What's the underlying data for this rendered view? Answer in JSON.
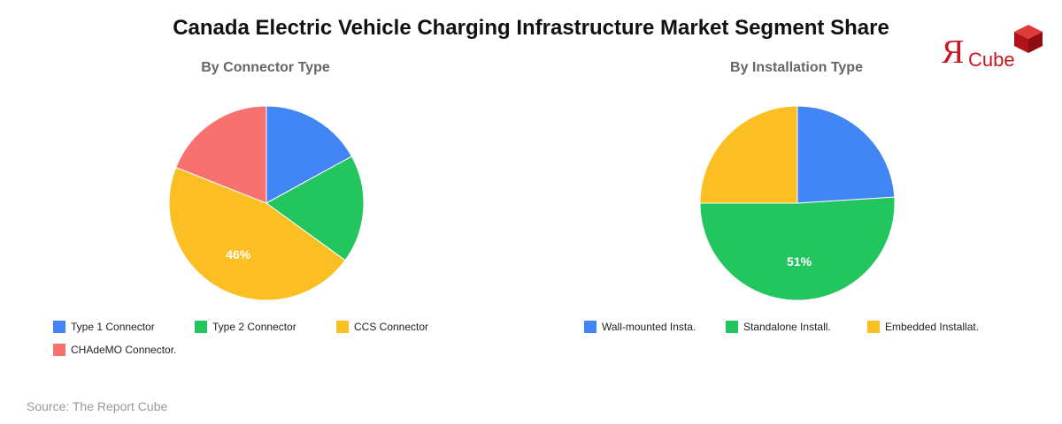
{
  "title": "Canada Electric Vehicle Charging Infrastructure Market Segment Share",
  "logo": {
    "mark": "Я",
    "text": "Cube"
  },
  "source": "Source: The Report Cube",
  "chart_data": [
    {
      "type": "pie",
      "title": "By Connector Type",
      "slices": [
        {
          "label": "Type 1 Connector",
          "value": 17,
          "color": "#4285f4",
          "show_label": false
        },
        {
          "label": "Type 2 Connector",
          "value": 18,
          "color": "#22c55e",
          "show_label": false
        },
        {
          "label": "CCS Connector",
          "value": 46,
          "color": "#fbbf24",
          "show_label": true,
          "display": "46%"
        },
        {
          "label": "CHAdeMO Connector.",
          "value": 19,
          "color": "#f87171",
          "show_label": false
        }
      ],
      "legend_placement": "bottom"
    },
    {
      "type": "pie",
      "title": "By Installation Type",
      "slices": [
        {
          "label": "Wall-mounted Insta.",
          "value": 24,
          "color": "#4285f4",
          "show_label": false
        },
        {
          "label": "Standalone Install.",
          "value": 51,
          "color": "#22c55e",
          "show_label": true,
          "display": "51%"
        },
        {
          "label": "Embedded Installat.",
          "value": 25,
          "color": "#fbbf24",
          "show_label": false
        }
      ],
      "legend_placement": "bottom"
    }
  ]
}
